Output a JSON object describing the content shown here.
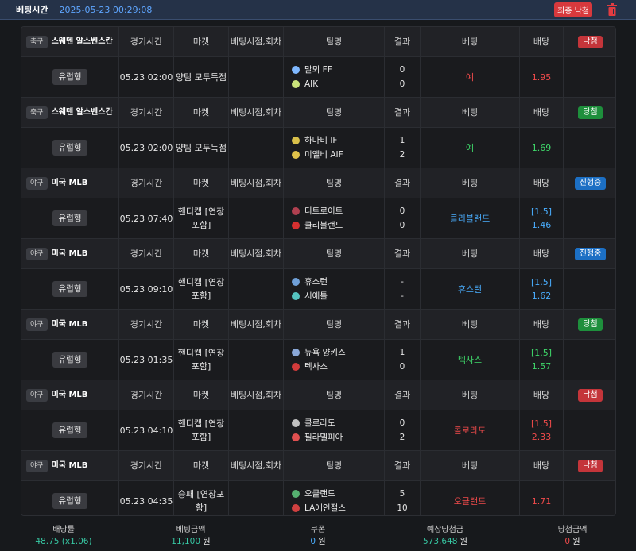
{
  "topbar": {
    "label": "베팅시간",
    "timestamp": "2025-05-23 00:29:08",
    "cancel_label": "최종 낙첨",
    "trash_icon": "trash-icon"
  },
  "headers": {
    "time": "경기시간",
    "market": "마켓",
    "point": "베팅시점,회차",
    "team": "팀명",
    "result": "결과",
    "bet": "베팅",
    "odds": "배당"
  },
  "groups": [
    {
      "sport": "축구",
      "league": "스웨덴 알스벤스칸",
      "status": "낙첨",
      "status_color": "red",
      "type": "유럽형",
      "time": "05.23 02:00",
      "market": "양팀 모두득점",
      "point": "",
      "teams": [
        {
          "name": "말뫼 FF",
          "icon": "malmo-logo-icon"
        },
        {
          "name": "AIK",
          "icon": "aik-logo-icon"
        }
      ],
      "scores": [
        "0",
        "0"
      ],
      "bet": "예",
      "bet_color": "red",
      "odds": "1.95",
      "odds_color": "red"
    },
    {
      "sport": "축구",
      "league": "스웨덴 알스벤스칸",
      "status": "당첨",
      "status_color": "green",
      "type": "유럽형",
      "time": "05.23 02:00",
      "market": "양팀 모두득점",
      "point": "",
      "teams": [
        {
          "name": "하마비 IF",
          "icon": "hammarby-logo-icon"
        },
        {
          "name": "미엘비 AIF",
          "icon": "mjallby-logo-icon"
        }
      ],
      "scores": [
        "1",
        "2"
      ],
      "bet": "예",
      "bet_color": "green",
      "odds": "1.69",
      "odds_color": "green"
    },
    {
      "sport": "야구",
      "league": "미국 MLB",
      "status": "진행중",
      "status_color": "blue",
      "type": "유럽형",
      "time": "05.23 07:40",
      "market": "핸디캡 [연장포함]",
      "point": "",
      "teams": [
        {
          "name": "디트로이트",
          "icon": "detroit-logo-icon"
        },
        {
          "name": "클리블랜드",
          "icon": "cleveland-logo-icon"
        }
      ],
      "scores": [
        "0",
        "0"
      ],
      "bet": "클리블랜드",
      "bet_color": "blue",
      "odds": "[1.5] 1.46",
      "odds_color": "blue"
    },
    {
      "sport": "야구",
      "league": "미국 MLB",
      "status": "진행중",
      "status_color": "blue",
      "type": "유럽형",
      "time": "05.23 09:10",
      "market": "핸디캡 [연장포함]",
      "point": "",
      "teams": [
        {
          "name": "휴스턴",
          "icon": "houston-logo-icon"
        },
        {
          "name": "시애틀",
          "icon": "seattle-logo-icon"
        }
      ],
      "scores": [
        "-",
        "-"
      ],
      "bet": "휴스턴",
      "bet_color": "blue",
      "odds": "[1.5] 1.62",
      "odds_color": "blue"
    },
    {
      "sport": "야구",
      "league": "미국 MLB",
      "status": "당첨",
      "status_color": "green",
      "type": "유럽형",
      "time": "05.23 01:35",
      "market": "핸디캡 [연장포함]",
      "point": "",
      "teams": [
        {
          "name": "뉴욕 양키스",
          "icon": "yankees-logo-icon"
        },
        {
          "name": "텍사스",
          "icon": "texas-logo-icon"
        }
      ],
      "scores": [
        "1",
        "0"
      ],
      "bet": "텍사스",
      "bet_color": "green",
      "odds": "[1.5] 1.57",
      "odds_color": "green"
    },
    {
      "sport": "야구",
      "league": "미국 MLB",
      "status": "낙첨",
      "status_color": "red",
      "type": "유럽형",
      "time": "05.23 04:10",
      "market": "핸디캡 [연장포함]",
      "point": "",
      "teams": [
        {
          "name": "콜로라도",
          "icon": "colorado-logo-icon"
        },
        {
          "name": "필라델피아",
          "icon": "phillies-logo-icon"
        }
      ],
      "scores": [
        "0",
        "2"
      ],
      "bet": "콜로라도",
      "bet_color": "red",
      "odds": "[1.5] 2.33",
      "odds_color": "red"
    },
    {
      "sport": "야구",
      "league": "미국 MLB",
      "status": "낙첨",
      "status_color": "red",
      "type": "유럽형",
      "time": "05.23 04:35",
      "market": "승패 [연장포함]",
      "point": "",
      "teams": [
        {
          "name": "오클랜드",
          "icon": "oakland-logo-icon"
        },
        {
          "name": "LA에인절스",
          "icon": "angels-logo-icon"
        }
      ],
      "scores": [
        "5",
        "10"
      ],
      "bet": "오클랜드",
      "bet_color": "red",
      "odds": "1.71",
      "odds_color": "red"
    }
  ],
  "footer": [
    {
      "label": "배당률",
      "value": "48.75 (x1.06)",
      "unit": "",
      "color": "green"
    },
    {
      "label": "베팅금액",
      "value": "11,100",
      "unit": "원",
      "color": "green"
    },
    {
      "label": "쿠폰",
      "value": "0",
      "unit": "원",
      "color": "blue"
    },
    {
      "label": "예상당첨금",
      "value": "573,648",
      "unit": "원",
      "color": "green"
    },
    {
      "label": "당첨금액",
      "value": "0",
      "unit": "원",
      "color": "red"
    }
  ],
  "colors": {
    "red": "#f24b4b",
    "green": "#3fd86a",
    "blue": "#4aaeff",
    "header_bar": "#253248",
    "accent_button": "#d8393d"
  }
}
